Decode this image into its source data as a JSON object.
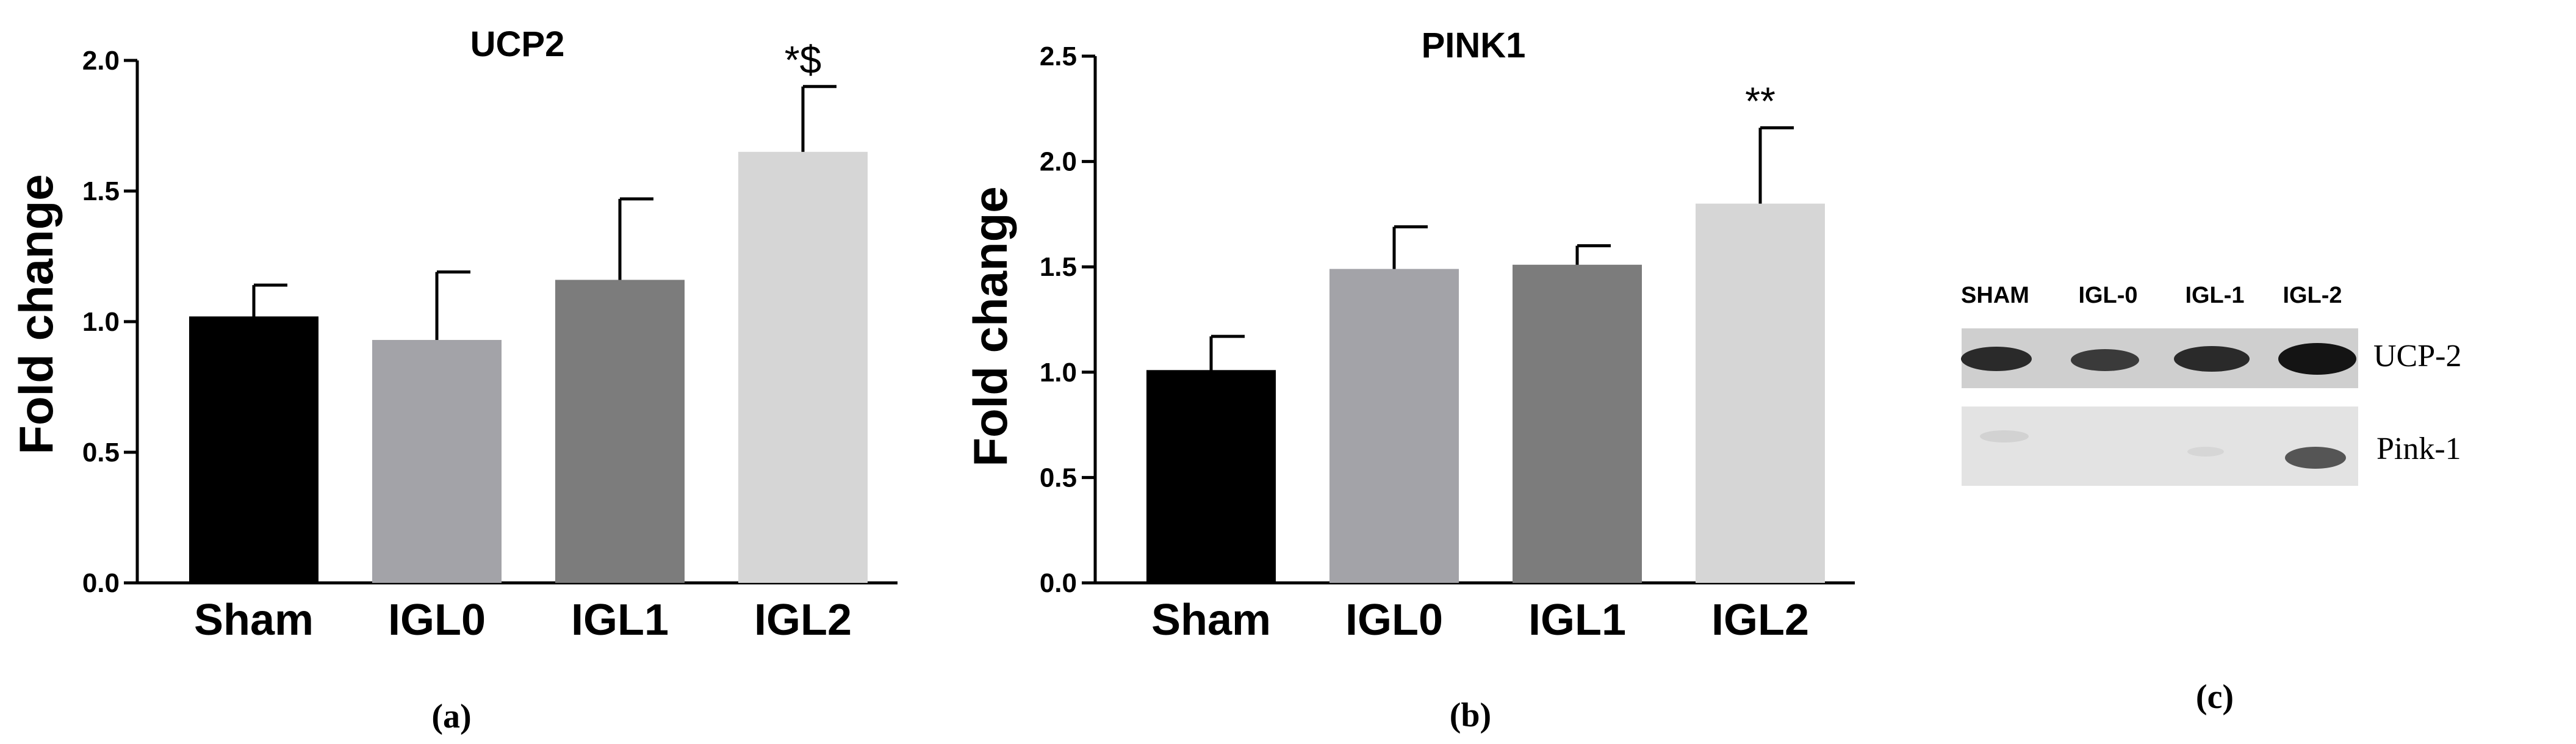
{
  "chart_data": [
    {
      "type": "bar",
      "title": "UCP2",
      "ylabel": "Fold change",
      "xlabel": "",
      "ylim": [
        0,
        2.0
      ],
      "yticks": [
        "0.0",
        "0.5",
        "1.0",
        "1.5",
        "2.0"
      ],
      "ytick_values": [
        0,
        0.5,
        1.0,
        1.5,
        2.0
      ],
      "categories": [
        "Sham",
        "IGL0",
        "IGL1",
        "IGL2"
      ],
      "values": [
        1.02,
        0.93,
        1.16,
        1.65
      ],
      "errors": [
        0.12,
        0.26,
        0.31,
        0.25
      ],
      "colors": [
        "#000000",
        "#a3a3a8",
        "#7c7c7c",
        "#d6d6d6"
      ],
      "annotations": [
        "",
        "",
        "",
        "*$"
      ],
      "panel_label": "(a)"
    },
    {
      "type": "bar",
      "title": "PINK1",
      "ylabel": "Fold change",
      "xlabel": "",
      "ylim": [
        0,
        2.5
      ],
      "yticks": [
        "0.0",
        "0.5",
        "1.0",
        "1.5",
        "2.0",
        "2.5"
      ],
      "ytick_values": [
        0,
        0.5,
        1.0,
        1.5,
        2.0,
        2.5
      ],
      "categories": [
        "Sham",
        "IGL0",
        "IGL1",
        "IGL2"
      ],
      "values": [
        1.01,
        1.49,
        1.51,
        1.8
      ],
      "errors": [
        0.16,
        0.2,
        0.09,
        0.36
      ],
      "colors": [
        "#000000",
        "#a3a3a8",
        "#7c7c7c",
        "#d6d6d6"
      ],
      "annotations": [
        "",
        "",
        "",
        "**"
      ],
      "panel_label": "(b)"
    }
  ],
  "blot": {
    "lanes": [
      "SHAM",
      "IGL-0",
      "IGL-1",
      "IGL-2"
    ],
    "proteins": [
      "UCP-2",
      "Pink-1"
    ],
    "panel_label": "(c)"
  }
}
